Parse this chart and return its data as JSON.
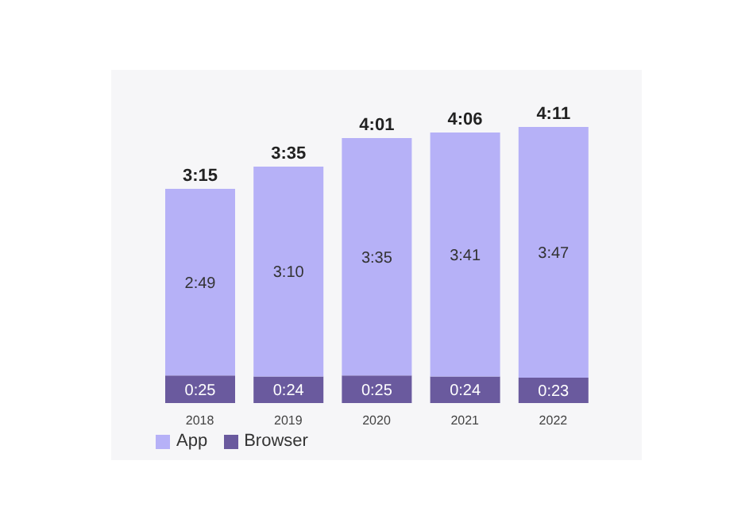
{
  "chart_data": {
    "type": "bar",
    "stacked": true,
    "categories": [
      "2018",
      "2019",
      "2020",
      "2021",
      "2022"
    ],
    "series": [
      {
        "name": "Browser",
        "color": "#6a5a9e",
        "values": [
          25,
          24,
          25,
          24,
          23
        ],
        "value_labels": [
          "0:25",
          "0:24",
          "0:25",
          "0:24",
          "0:23"
        ]
      },
      {
        "name": "App",
        "color": "#b6b1f7",
        "values": [
          169,
          190,
          215,
          221,
          227
        ],
        "value_labels": [
          "2:49",
          "3:10",
          "3:35",
          "3:41",
          "3:47"
        ]
      }
    ],
    "totals": [
      "3:15",
      "3:35",
      "4:01",
      "4:06",
      "4:11"
    ],
    "legend": "bottom left",
    "grid": false
  }
}
